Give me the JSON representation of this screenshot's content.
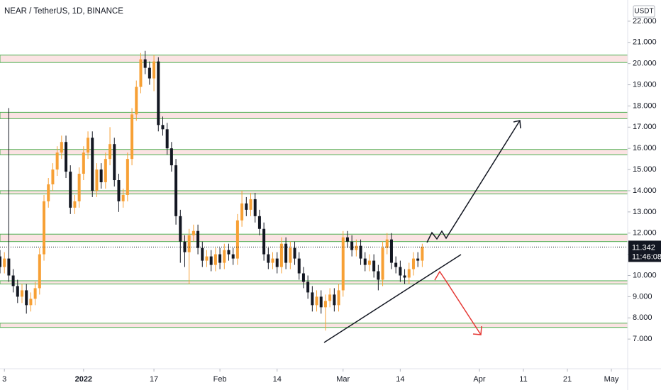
{
  "chart_data": {
    "type": "candlestick",
    "title": "NEAR / TetherUS, 1D, BINANCE",
    "currency": "USDT",
    "countdown": "11:46:08",
    "up_color": "#f7a035",
    "down_color": "#131722",
    "zone_fill": "#fbe3e3",
    "zone_edge": "#4caf50",
    "xlim": [
      -19,
      123.7
    ],
    "ylim": [
      5.6,
      23.0
    ],
    "xticks": [
      {
        "value": -18,
        "label": "3"
      },
      {
        "value": 0,
        "label": "2022"
      },
      {
        "value": 16,
        "label": "17"
      },
      {
        "value": 31,
        "label": "Feb"
      },
      {
        "value": 44,
        "label": "14"
      },
      {
        "value": 59,
        "label": "Mar"
      },
      {
        "value": 72,
        "label": "14"
      },
      {
        "value": 90,
        "label": "Apr"
      },
      {
        "value": 100,
        "label": "11"
      },
      {
        "value": 110,
        "label": "21"
      },
      {
        "value": 120,
        "label": "May"
      }
    ],
    "yticks": [
      {
        "value": 7,
        "label": "7.000"
      },
      {
        "value": 8,
        "label": "8.000"
      },
      {
        "value": 9,
        "label": "9.000"
      },
      {
        "value": 10,
        "label": "10.000"
      },
      {
        "value": 11,
        "label": "11.000"
      },
      {
        "value": 12,
        "label": "12.000"
      },
      {
        "value": 13,
        "label": "13.000"
      },
      {
        "value": 14,
        "label": "14.000"
      },
      {
        "value": 15,
        "label": "15.000"
      },
      {
        "value": 16,
        "label": "16.000"
      },
      {
        "value": 17,
        "label": "17.000"
      },
      {
        "value": 18,
        "label": "18.000"
      },
      {
        "value": 19,
        "label": "19.000"
      },
      {
        "value": 20,
        "label": "20.000"
      },
      {
        "value": 21,
        "label": "21.000"
      },
      {
        "value": 22,
        "label": "22.000"
      }
    ],
    "zones": [
      {
        "low": 20.05,
        "high": 20.4
      },
      {
        "low": 17.4,
        "high": 17.7
      },
      {
        "low": 15.7,
        "high": 15.95
      },
      {
        "low": 13.85,
        "high": 14.0
      },
      {
        "low": 11.6,
        "high": 11.95
      },
      {
        "low": 9.6,
        "high": 9.75
      },
      {
        "low": 7.55,
        "high": 7.75
      }
    ],
    "candles": {
      "x": [
        -19,
        -18,
        -17,
        -16,
        -15,
        -14,
        -13,
        -12,
        -11,
        -10,
        -9,
        -8,
        -7,
        -6,
        -5,
        -4,
        -3,
        -2,
        -1,
        0,
        1,
        2,
        3,
        4,
        5,
        6,
        7,
        8,
        9,
        10,
        11,
        12,
        13,
        14,
        15,
        16,
        17,
        18,
        19,
        20,
        21,
        22,
        23,
        24,
        25,
        26,
        27,
        28,
        29,
        30,
        31,
        32,
        33,
        34,
        35,
        36,
        37,
        38,
        39,
        40,
        41,
        42,
        43,
        44,
        45,
        46,
        47,
        48,
        49,
        50,
        51,
        52,
        53,
        54,
        55,
        56,
        57,
        58,
        59,
        60,
        61,
        62,
        63,
        64,
        65,
        66,
        67,
        68,
        69,
        70,
        71,
        72,
        73,
        74,
        75,
        76,
        77
      ],
      "open": [
        10.9,
        10.4,
        10.8,
        10.0,
        9.5,
        9.0,
        9.3,
        8.6,
        8.9,
        9.4,
        11.0,
        13.5,
        14.3,
        15.0,
        15.8,
        16.3,
        14.9,
        13.2,
        13.5,
        14.8,
        15.8,
        16.5,
        14.0,
        15.0,
        14.4,
        15.5,
        16.2,
        14.5,
        13.5,
        13.8,
        15.5,
        17.6,
        18.9,
        20.2,
        19.8,
        19.3,
        20.1,
        17.1,
        16.9,
        16.0,
        15.2,
        12.8,
        11.6,
        11.1,
        11.9,
        12.1,
        11.3,
        10.7,
        10.9,
        10.5,
        11.0,
        10.6,
        11.2,
        11.0,
        10.8,
        12.6,
        13.4,
        13.1,
        13.6,
        12.8,
        12.2,
        11.0,
        10.6,
        10.8,
        10.4,
        11.5,
        10.6,
        11.3,
        10.8,
        10.1,
        9.7,
        9.2,
        8.6,
        9.0,
        8.5,
        8.8,
        9.1,
        8.6,
        9.3,
        11.8,
        11.6,
        11.2,
        11.4,
        10.8,
        10.5,
        10.7,
        10.2,
        9.8,
        11.3,
        11.7,
        10.6,
        10.4,
        10.0,
        9.9,
        10.3,
        10.8,
        10.7
      ],
      "high": [
        11.2,
        11.1,
        17.9,
        10.3,
        9.8,
        9.6,
        9.6,
        9.2,
        9.7,
        11.3,
        13.8,
        14.6,
        15.3,
        16.1,
        16.6,
        16.6,
        15.2,
        13.8,
        15.1,
        16.1,
        16.8,
        16.8,
        15.3,
        15.3,
        15.8,
        17.0,
        16.5,
        14.8,
        14.1,
        15.8,
        17.9,
        19.2,
        20.5,
        20.6,
        20.1,
        20.4,
        20.3,
        17.5,
        17.2,
        16.3,
        15.5,
        13.1,
        11.9,
        12.2,
        12.4,
        12.4,
        11.6,
        11.2,
        11.2,
        11.3,
        11.3,
        11.5,
        11.5,
        11.3,
        12.9,
        14.0,
        13.7,
        13.9,
        13.9,
        13.1,
        12.5,
        11.3,
        11.1,
        11.1,
        11.8,
        11.8,
        11.6,
        11.6,
        11.1,
        10.4,
        10.0,
        9.5,
        9.3,
        9.3,
        9.1,
        9.4,
        9.4,
        9.6,
        12.1,
        12.1,
        11.9,
        11.7,
        11.7,
        11.1,
        11.0,
        11.0,
        10.5,
        11.6,
        12.0,
        12.0,
        10.9,
        10.7,
        10.3,
        10.6,
        11.1,
        11.1,
        11.5
      ],
      "low": [
        10.1,
        10.1,
        9.7,
        9.2,
        8.7,
        8.7,
        8.2,
        8.3,
        8.6,
        9.1,
        10.7,
        13.2,
        14.0,
        14.7,
        15.5,
        14.6,
        12.9,
        12.9,
        13.2,
        14.5,
        15.5,
        13.7,
        13.7,
        14.1,
        14.1,
        15.2,
        14.2,
        13.0,
        13.2,
        13.5,
        15.2,
        17.3,
        18.6,
        19.5,
        19.0,
        18.7,
        16.8,
        16.6,
        15.7,
        14.9,
        12.4,
        10.6,
        10.4,
        9.6,
        11.6,
        11.0,
        10.4,
        10.4,
        10.2,
        10.2,
        10.3,
        10.3,
        10.7,
        10.5,
        10.5,
        12.3,
        12.8,
        12.8,
        12.5,
        11.9,
        10.7,
        10.3,
        10.3,
        10.1,
        10.1,
        10.3,
        10.3,
        10.5,
        9.8,
        9.4,
        8.9,
        8.3,
        8.3,
        8.2,
        7.4,
        8.5,
        8.3,
        8.3,
        9.0,
        11.3,
        10.9,
        10.9,
        10.5,
        10.2,
        10.2,
        9.9,
        9.3,
        9.5,
        11.0,
        10.3,
        10.1,
        9.7,
        9.6,
        9.6,
        10.0,
        10.4,
        10.4
      ],
      "close": [
        10.4,
        10.8,
        10.0,
        9.5,
        9.0,
        9.3,
        8.6,
        8.9,
        9.4,
        11.0,
        13.5,
        14.3,
        15.0,
        15.8,
        16.3,
        14.9,
        13.2,
        13.5,
        14.8,
        15.8,
        16.5,
        14.0,
        15.0,
        14.4,
        15.5,
        16.2,
        14.5,
        13.5,
        13.8,
        15.5,
        17.6,
        18.9,
        20.2,
        19.8,
        19.3,
        20.1,
        17.1,
        16.9,
        16.0,
        15.2,
        12.8,
        11.6,
        11.1,
        11.9,
        12.1,
        11.3,
        10.7,
        10.9,
        10.5,
        11.0,
        10.6,
        11.2,
        11.0,
        10.8,
        12.6,
        13.4,
        13.1,
        13.6,
        12.8,
        12.2,
        11.0,
        10.6,
        10.8,
        10.4,
        11.5,
        10.6,
        11.3,
        10.8,
        10.1,
        9.7,
        9.2,
        8.6,
        9.0,
        8.5,
        8.8,
        9.1,
        8.6,
        9.3,
        11.8,
        11.6,
        11.2,
        11.4,
        10.8,
        10.5,
        10.7,
        10.2,
        9.8,
        11.3,
        11.7,
        10.6,
        10.4,
        10.0,
        9.9,
        10.3,
        10.8,
        10.7,
        11.342
      ]
    }
  }
}
